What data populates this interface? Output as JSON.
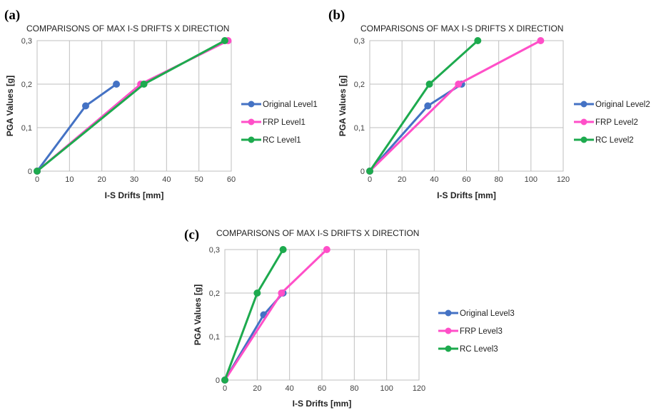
{
  "chart_data": [
    {
      "type": "line",
      "panel_label": "(a)",
      "title": "COMPARISONS OF MAX I-S DRIFTS X DIRECTION",
      "xlabel": "I-S Drifts [mm]",
      "ylabel": "PGA Values [g]",
      "xlim": [
        0,
        60
      ],
      "ylim": [
        0,
        0.3
      ],
      "x_ticks": [
        "0",
        "10",
        "20",
        "30",
        "40",
        "50",
        "60"
      ],
      "y_ticks": [
        "0",
        "0,1",
        "0,2",
        "0,3"
      ],
      "grid": true,
      "legend_position": "right",
      "series": [
        {
          "name": "Original Level1",
          "color": "#4472C4",
          "x": [
            0,
            15,
            24.5
          ],
          "y": [
            0,
            0.15,
            0.2
          ]
        },
        {
          "name": "FRP Level1",
          "color": "#FF4FC8",
          "x": [
            0,
            32,
            59
          ],
          "y": [
            0,
            0.2,
            0.3
          ]
        },
        {
          "name": "RC Level1",
          "color": "#1DAA4E",
          "x": [
            0,
            33,
            58
          ],
          "y": [
            0,
            0.2,
            0.3
          ]
        }
      ]
    },
    {
      "type": "line",
      "panel_label": "(b)",
      "title": "COMPARISONS OF MAX I-S DRIFTS X DIRECTION",
      "xlabel": "I-S Drifts [mm]",
      "ylabel": "PGA Values [g]",
      "xlim": [
        0,
        120
      ],
      "ylim": [
        0,
        0.3
      ],
      "x_ticks": [
        "0",
        "20",
        "40",
        "60",
        "80",
        "100",
        "120"
      ],
      "y_ticks": [
        "0",
        "0,1",
        "0,2",
        "0,3"
      ],
      "grid": true,
      "legend_position": "right",
      "series": [
        {
          "name": "Original Level2",
          "color": "#4472C4",
          "x": [
            0,
            36,
            57
          ],
          "y": [
            0,
            0.15,
            0.2
          ]
        },
        {
          "name": "FRP Level2",
          "color": "#FF4FC8",
          "x": [
            0,
            55,
            106
          ],
          "y": [
            0,
            0.2,
            0.3
          ]
        },
        {
          "name": "RC Level2",
          "color": "#1DAA4E",
          "x": [
            0,
            37,
            67
          ],
          "y": [
            0,
            0.2,
            0.3
          ]
        }
      ]
    },
    {
      "type": "line",
      "panel_label": "(c)",
      "title": "COMPARISONS OF MAX I-S DRIFTS X DIRECTION",
      "xlabel": "I-S Drifts [mm]",
      "ylabel": "PGA Values [g]",
      "xlim": [
        0,
        120
      ],
      "ylim": [
        0,
        0.3
      ],
      "x_ticks": [
        "0",
        "20",
        "40",
        "60",
        "80",
        "100",
        "120"
      ],
      "y_ticks": [
        "0",
        "0,1",
        "0,2",
        "0,3"
      ],
      "grid": true,
      "legend_position": "right",
      "series": [
        {
          "name": "Original Level3",
          "color": "#4472C4",
          "x": [
            0,
            24,
            36
          ],
          "y": [
            0,
            0.15,
            0.2
          ]
        },
        {
          "name": "FRP Level3",
          "color": "#FF4FC8",
          "x": [
            0,
            35,
            63
          ],
          "y": [
            0,
            0.2,
            0.3
          ]
        },
        {
          "name": "RC Level3",
          "color": "#1DAA4E",
          "x": [
            0,
            20,
            36
          ],
          "y": [
            0,
            0.2,
            0.3
          ]
        }
      ]
    }
  ]
}
